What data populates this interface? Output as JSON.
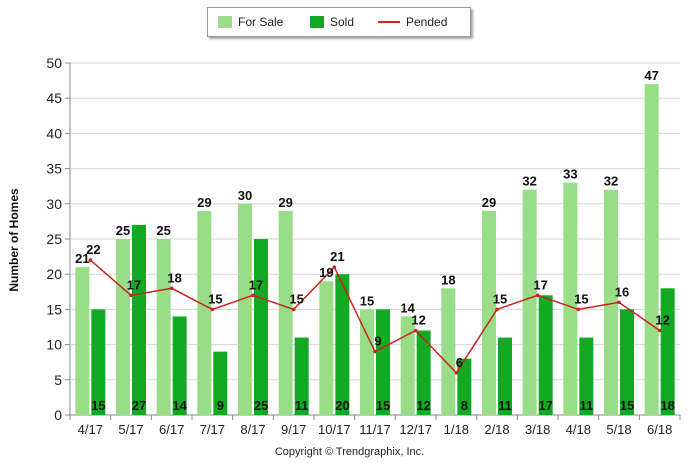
{
  "chart_data": {
    "type": "bar",
    "categories": [
      "4/17",
      "5/17",
      "6/17",
      "7/17",
      "8/17",
      "9/17",
      "10/17",
      "11/17",
      "12/17",
      "1/18",
      "2/18",
      "3/18",
      "4/18",
      "5/18",
      "6/18"
    ],
    "series": [
      {
        "name": "For Sale",
        "type": "bar",
        "color": "#99dd88",
        "values": [
          21,
          25,
          25,
          29,
          30,
          29,
          19,
          15,
          14,
          18,
          29,
          32,
          33,
          32,
          47
        ]
      },
      {
        "name": "Sold",
        "type": "bar",
        "color": "#11aa22",
        "values": [
          15,
          27,
          14,
          9,
          25,
          11,
          20,
          15,
          12,
          8,
          11,
          17,
          11,
          15,
          18
        ]
      },
      {
        "name": "Pended",
        "type": "line",
        "color": "#cc2222",
        "values": [
          22,
          17,
          18,
          15,
          17,
          15,
          21,
          9,
          12,
          6,
          15,
          17,
          15,
          16,
          12
        ]
      }
    ],
    "ylabel": "Number of Homes",
    "xlabel": "",
    "ylim": [
      0,
      50
    ],
    "yticks": [
      0,
      5,
      10,
      15,
      20,
      25,
      30,
      35,
      40,
      45,
      50
    ],
    "grid": true,
    "legend_position": "top"
  },
  "copyright": "Copyright © Trendgraphix, Inc."
}
